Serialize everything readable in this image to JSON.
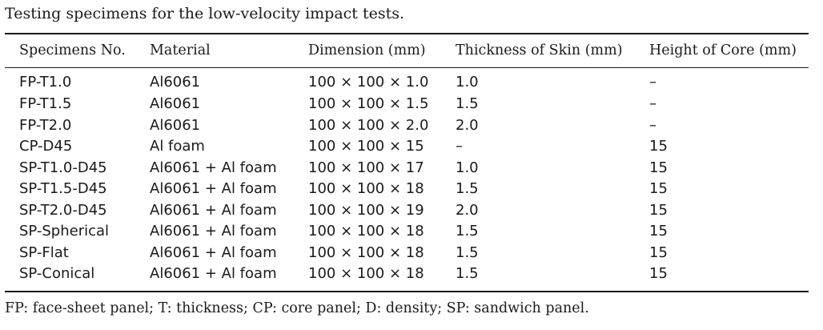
{
  "caption": "Testing specimens for the low-velocity impact tests.",
  "table": {
    "headers": [
      "Specimens No.",
      "Material",
      "Dimension (mm)",
      "Thickness of Skin (mm)",
      "Height of Core (mm)"
    ],
    "rows": [
      [
        "FP-T1.0",
        "Al6061",
        "100 × 100 × 1.0",
        "1.0",
        "–"
      ],
      [
        "FP-T1.5",
        "Al6061",
        "100 × 100 × 1.5",
        "1.5",
        "–"
      ],
      [
        "FP-T2.0",
        "Al6061",
        "100 × 100 × 2.0",
        "2.0",
        "–"
      ],
      [
        "CP-D45",
        "Al foam",
        "100 × 100 × 15",
        "–",
        "15"
      ],
      [
        "SP-T1.0-D45",
        "Al6061 + Al foam",
        "100 × 100 × 17",
        "1.0",
        "15"
      ],
      [
        "SP-T1.5-D45",
        "Al6061 + Al foam",
        "100 × 100 × 18",
        "1.5",
        "15"
      ],
      [
        "SP-T2.0-D45",
        "Al6061 + Al foam",
        "100 × 100 × 19",
        "2.0",
        "15"
      ],
      [
        "SP-Spherical",
        "Al6061 + Al foam",
        "100 × 100 × 18",
        "1.5",
        "15"
      ],
      [
        "SP-Flat",
        "Al6061 + Al foam",
        "100 × 100 × 18",
        "1.5",
        "15"
      ],
      [
        "SP-Conical",
        "Al6061 + Al foam",
        "100 × 100 × 18",
        "1.5",
        "15"
      ]
    ]
  },
  "footnote": "FP: face-sheet panel; T: thickness; CP: core panel; D: density; SP: sandwich panel."
}
